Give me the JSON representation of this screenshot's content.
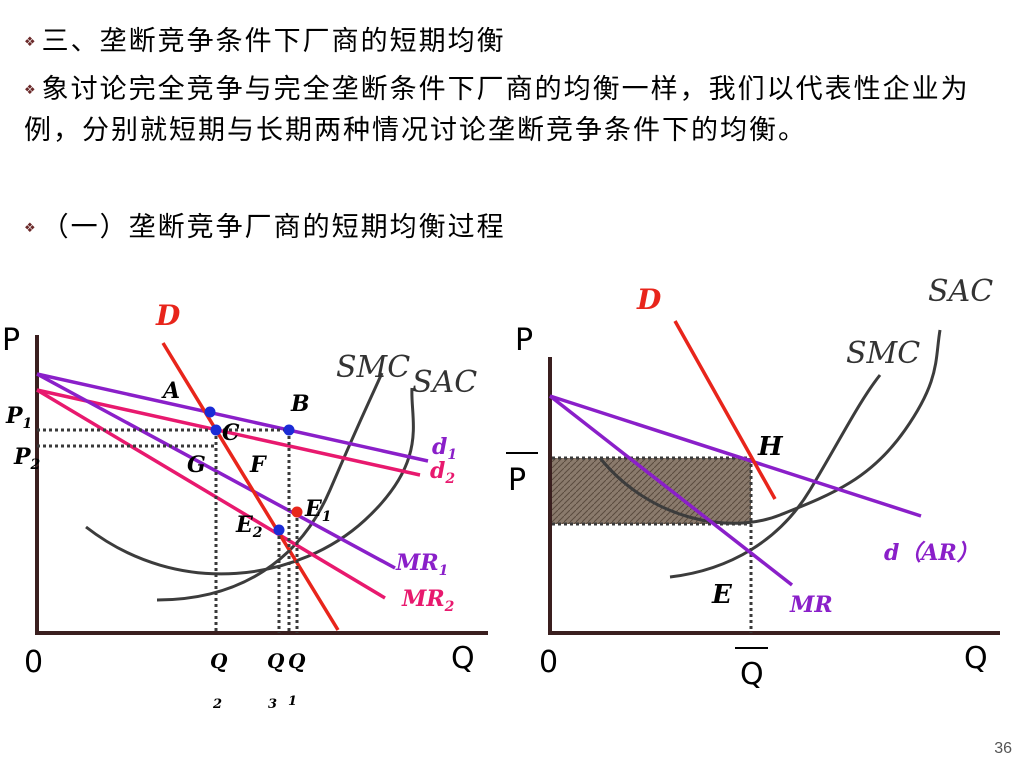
{
  "slide": {
    "heading": "三、垄断竞争条件下厂商的短期均衡",
    "paragraph": "象讨论完全竞争与完全垄断条件下厂商的均衡一样，我们以代表性企业为例，分别就短期与长期两种情况讨论垄断竞争条件下的均衡。",
    "subheading": "（一）垄断竞争厂商的短期均衡过程",
    "bullet_icon": "diamond-bullet-icon",
    "page_number": "36"
  },
  "left_diagram": {
    "axis_y": "P",
    "axis_x": "Q",
    "origin": "0",
    "curve_D": "D",
    "curve_SMC": "SMC",
    "curve_SAC": "SAC",
    "curve_d1_base": "d",
    "curve_d1_sub": "1",
    "curve_d2_base": "d",
    "curve_d2_sub": "2",
    "curve_MR1_base": "MR",
    "curve_MR1_sub": "1",
    "curve_MR2_base": "MR",
    "curve_MR2_sub": "2",
    "point_A": "A",
    "point_B": "B",
    "point_C": "C",
    "point_G": "G",
    "point_F": "F",
    "point_E1_base": "E",
    "point_E1_sub": "1",
    "point_E2_base": "E",
    "point_E2_sub": "2",
    "price_P1_base": "P",
    "price_P1_sub": "1",
    "price_P2_base": "P",
    "price_P2_sub": "2",
    "qty_Q2_base": "Q",
    "qty_Q2_sub": "2",
    "qty_Q3_base": "Q",
    "qty_Q3_sub": "3",
    "qty_Q1_base": "Q",
    "qty_Q1_sub": "1"
  },
  "right_diagram": {
    "axis_y": "P",
    "axis_x": "Q",
    "origin": "0",
    "curve_D": "D",
    "curve_SAC": "SAC",
    "curve_SMC": "SMC",
    "curve_dAR": "d（AR）",
    "curve_MR": "MR",
    "point_H": "H",
    "point_E": "E",
    "price_label": "P",
    "qty_label": "Q"
  },
  "colors": {
    "axis": "#3a1f1f",
    "demand_red": "#e8251b",
    "purple": "#8a1fc9",
    "pink": "#e8196e",
    "cost_curve": "#3c3c3c",
    "dot_blue": "#1a2bd6",
    "dot_red": "#e8251b",
    "shade": "#7a6a5e",
    "label_red": "#e8251b",
    "label_purple": "#8a1fc9",
    "label_pink": "#e8196e"
  }
}
